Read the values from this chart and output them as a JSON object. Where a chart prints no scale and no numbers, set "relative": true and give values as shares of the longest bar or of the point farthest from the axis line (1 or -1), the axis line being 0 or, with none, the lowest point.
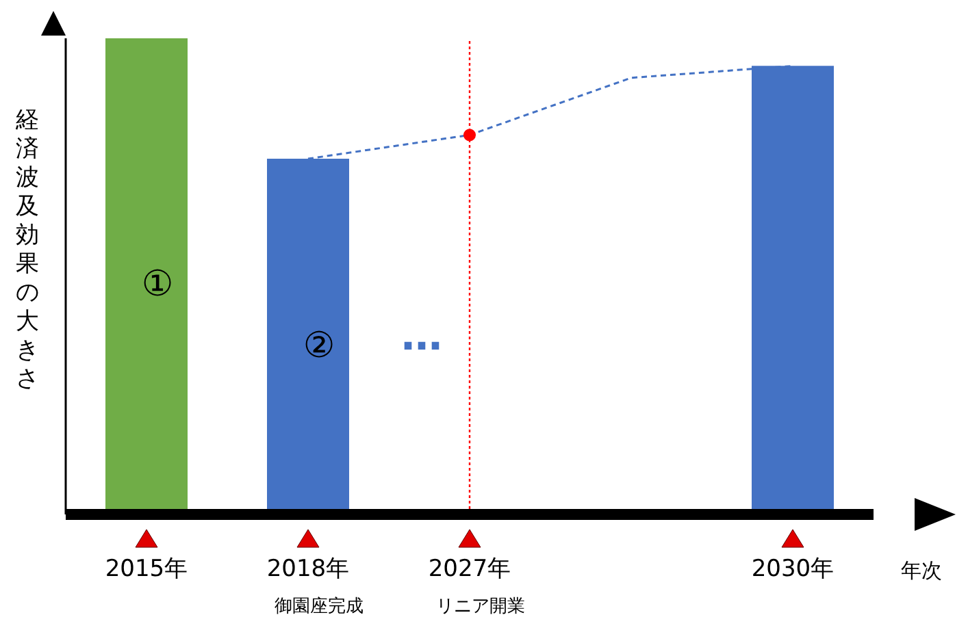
{
  "chart_data": {
    "type": "bar",
    "relative": true,
    "xlabel": "年次",
    "ylabel": "経済波及効果の大きさ",
    "categories": [
      "2015年",
      "2018年",
      "2027年",
      null,
      "2030年"
    ],
    "series": [
      {
        "colors": [
          "#70ad47",
          "#4472c4",
          null,
          null,
          "#4472c4"
        ],
        "values": [
          1,
          0.747,
          null,
          null,
          0.942
        ]
      },
      {
        "type": "line",
        "color": "#4472c4",
        "line_style": "dashed",
        "marker": "none",
        "values": [
          null,
          0.747,
          0.797,
          0.917,
          0.942
        ]
      },
      {
        "type": "scatter",
        "color": "#ff0000",
        "marker": "circle",
        "values": [
          null,
          null,
          0.797,
          null,
          null
        ]
      }
    ],
    "ref_lines": [
      {
        "axis": "x",
        "value": "2027年",
        "color": "#ff0000",
        "line_style": "dotted"
      }
    ],
    "annotations": [
      "①",
      "②",
      "…",
      "御園座完成",
      "リニア開業"
    ]
  }
}
